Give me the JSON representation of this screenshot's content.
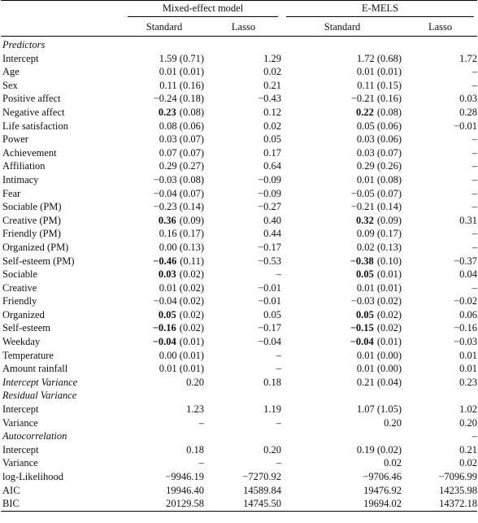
{
  "header": {
    "groups": [
      "Mixed-effect model",
      "E-MELS"
    ],
    "columns": [
      "Standard",
      "Lasso",
      "Standard",
      "Lasso"
    ]
  },
  "rows": [
    {
      "label": "Predictors",
      "italic": true,
      "cells": [
        null,
        null,
        null,
        null
      ]
    },
    {
      "label": "Intercept",
      "cells": [
        "1.59 (0.71)",
        "1.29",
        "1.72 (0.68)",
        "1.72"
      ]
    },
    {
      "label": "Age",
      "cells": [
        "0.01 (0.01)",
        "0.02",
        "0.01 (0.01)",
        "–"
      ]
    },
    {
      "label": "Sex",
      "cells": [
        "0.11 (0.16)",
        "0.21",
        "0.11 (0.15)",
        "–"
      ]
    },
    {
      "label": "Positive affect",
      "cells": [
        "−0.24 (0.18)",
        "−0.43",
        "−0.21 (0.16)",
        "0.03"
      ]
    },
    {
      "label": "Negative affect",
      "cells": [
        {
          "bold": "0.23",
          "se": "(0.08)"
        },
        "0.12",
        {
          "bold": "0.22",
          "se": "(0.08)"
        },
        "0.28"
      ]
    },
    {
      "label": "Life satisfaction",
      "cells": [
        "0.08 (0.06)",
        "0.02",
        "0.05 (0.06)",
        "−0.01"
      ]
    },
    {
      "label": "Power",
      "cells": [
        "0.03 (0.07)",
        "0.05",
        "0.03 (0.06)",
        "–"
      ]
    },
    {
      "label": "Achievement",
      "cells": [
        "0.07 (0.07)",
        "0.17",
        "0.03 (0.07)",
        "–"
      ]
    },
    {
      "label": "Affiliation",
      "cells": [
        "0.29 (0.27)",
        "0.64",
        "0.29 (0.26)",
        "–"
      ]
    },
    {
      "label": "Intimacy",
      "cells": [
        "−0.03 (0.08)",
        "−0.09",
        "0.01 (0.08)",
        "–"
      ]
    },
    {
      "label": "Fear",
      "cells": [
        "−0.04 (0.07)",
        "−0.09",
        "−0.05 (0.07)",
        "–"
      ]
    },
    {
      "label": "Sociable (PM)",
      "cells": [
        "−0.23 (0.14)",
        "−0.27",
        "−0.21 (0.14)",
        "–"
      ]
    },
    {
      "label": "Creative (PM)",
      "cells": [
        {
          "bold": "0.36",
          "se": "(0.09)"
        },
        "0.40",
        {
          "bold": "0.32",
          "se": "(0.09)"
        },
        "0.31"
      ]
    },
    {
      "label": "Friendly (PM)",
      "cells": [
        "0.16 (0.17)",
        "0.44",
        "0.09 (0.17)",
        "–"
      ]
    },
    {
      "label": "Organized (PM)",
      "cells": [
        "0.00 (0.13)",
        "−0.17",
        "0.02 (0.13)",
        "–"
      ]
    },
    {
      "label": "Self-esteem (PM)",
      "cells": [
        {
          "bold": "−0.46",
          "se": "(0.11)"
        },
        "−0.53",
        {
          "bold": "−0.38",
          "se": "(0.10)"
        },
        "−0.37"
      ]
    },
    {
      "label": "Sociable",
      "cells": [
        {
          "bold": "0.03",
          "se": "(0.02)"
        },
        "–",
        {
          "bold": "0.05",
          "se": "(0.01)"
        },
        "0.04"
      ]
    },
    {
      "label": "Creative",
      "cells": [
        "0.01 (0.02)",
        "−0.01",
        "0.01 (0.01)",
        "–"
      ]
    },
    {
      "label": "Friendly",
      "cells": [
        "−0.04 (0.02)",
        "−0.01",
        "−0.03 (0.02)",
        "−0.02"
      ]
    },
    {
      "label": "Organized",
      "cells": [
        {
          "bold": "0.05",
          "se": "(0.02)"
        },
        "0.05",
        {
          "bold": "0.05",
          "se": "(0.02)"
        },
        "0.06"
      ]
    },
    {
      "label": "Self-esteem",
      "cells": [
        {
          "bold": "−0.16",
          "se": "(0.02)"
        },
        "−0.17",
        {
          "bold": "−0.15",
          "se": "(0.02)"
        },
        "−0.16"
      ]
    },
    {
      "label": "Weekday",
      "cells": [
        {
          "bold": "−0.04",
          "se": "(0.01)"
        },
        "−0.04",
        {
          "bold": "−0.04",
          "se": "(0.01)"
        },
        "−0.03"
      ]
    },
    {
      "label": "Temperature",
      "cells": [
        "0.00 (0.01)",
        "–",
        "0.01 (0.00)",
        "0.01"
      ]
    },
    {
      "label": "Amount rainfall",
      "cells": [
        "0.01 (0.01)",
        "–",
        "0.01 (0.00)",
        "0.01"
      ]
    },
    {
      "label": "Intercept Variance",
      "italic": true,
      "cells": [
        "0.20",
        "0.18",
        "0.21 (0.04)",
        "0.23"
      ]
    },
    {
      "label": "Residual Variance",
      "italic": true,
      "cells": [
        null,
        null,
        null,
        null
      ]
    },
    {
      "label": "Intercept",
      "cells": [
        "1.23",
        "1.19",
        "1.07 (1.05)",
        "1.02"
      ]
    },
    {
      "label": "Variance",
      "cells": [
        "–",
        "–",
        "0.20",
        "0.20"
      ]
    },
    {
      "label": "Autocorrelation",
      "italic": true,
      "cells": [
        null,
        null,
        null,
        "–"
      ]
    },
    {
      "label": "Intercept",
      "cells": [
        "0.18",
        "0.20",
        "0.19 (0.02)",
        "0.21"
      ]
    },
    {
      "label": "Variance",
      "cells": [
        "–",
        "–",
        "0.02",
        "0.02"
      ]
    },
    {
      "label": "log-Likelihood",
      "cells": [
        "−9946.19",
        "−7270.92",
        "−9706.46",
        "−7096.99"
      ]
    },
    {
      "label": "AIC",
      "cells": [
        "19946.40",
        "14589.84",
        "19476.92",
        "14235.98"
      ]
    },
    {
      "label": "BIC",
      "cells": [
        "20129.58",
        "14745.50",
        "19694.02",
        "14372.18"
      ]
    }
  ]
}
